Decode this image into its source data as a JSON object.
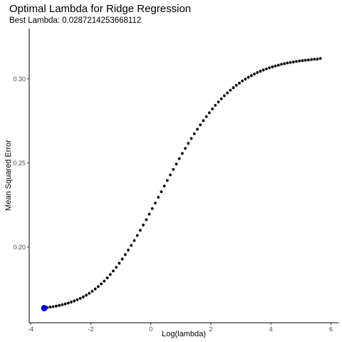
{
  "chart_data": {
    "type": "scatter",
    "title": "Optimal Lambda for Ridge Regression",
    "subtitle": "Best Lambda:  0.0287214253668112",
    "xlabel": "Log(lambda)",
    "ylabel": "Mean Squared Error",
    "xlim": [
      -4.05,
      6.25
    ],
    "ylim": [
      0.155,
      0.33
    ],
    "x_ticks": [
      -4,
      -2,
      0,
      2,
      4,
      6
    ],
    "x_tick_labels": [
      "-4",
      "-2",
      "0",
      "2",
      "4",
      "6"
    ],
    "y_ticks": [
      0.2,
      0.25,
      0.3
    ],
    "y_tick_labels": [
      "0.20",
      "0.25",
      "0.30"
    ],
    "grid": false,
    "point_color": "#000000",
    "highlight_color": "#0000cc",
    "series": [
      {
        "x": [
          -3.55,
          -3.45,
          -3.35,
          -3.25,
          -3.15,
          -3.05,
          -2.95,
          -2.85,
          -2.75,
          -2.65,
          -2.55,
          -2.45,
          -2.35,
          -2.25,
          -2.15,
          -2.05,
          -1.95,
          -1.85,
          -1.75,
          -1.65,
          -1.55,
          -1.45,
          -1.35,
          -1.25,
          -1.15,
          -1.05,
          -0.95,
          -0.85,
          -0.75,
          -0.65,
          -0.55,
          -0.45,
          -0.35,
          -0.25,
          -0.15,
          -0.05,
          0.05,
          0.15,
          0.25,
          0.35,
          0.45,
          0.55,
          0.65,
          0.75,
          0.85,
          0.95,
          1.05,
          1.15,
          1.25,
          1.35,
          1.45,
          1.55,
          1.65,
          1.75,
          1.85,
          1.95,
          2.05,
          2.15,
          2.25,
          2.35,
          2.45,
          2.55,
          2.65,
          2.75,
          2.85,
          2.95,
          3.05,
          3.15,
          3.25,
          3.35,
          3.45,
          3.55,
          3.65,
          3.75,
          3.85,
          3.95,
          4.05,
          4.15,
          4.25,
          4.35,
          4.45,
          4.55,
          4.65,
          4.75,
          4.85,
          4.95,
          5.05,
          5.15,
          5.25,
          5.35,
          5.45,
          5.55,
          5.65
        ],
        "y": [
          0.1637,
          0.164,
          0.1643,
          0.1646,
          0.1649,
          0.1653,
          0.1657,
          0.1662,
          0.1667,
          0.1673,
          0.168,
          0.1687,
          0.1695,
          0.1704,
          0.1714,
          0.1725,
          0.1737,
          0.1751,
          0.1765,
          0.1781,
          0.1798,
          0.1817,
          0.1837,
          0.1858,
          0.188,
          0.1904,
          0.1929,
          0.1955,
          0.1982,
          0.201,
          0.2039,
          0.2069,
          0.21,
          0.2131,
          0.2163,
          0.2196,
          0.2229,
          0.2262,
          0.2296,
          0.2329,
          0.2363,
          0.2396,
          0.2429,
          0.2462,
          0.2494,
          0.2526,
          0.2557,
          0.2587,
          0.2617,
          0.2646,
          0.2674,
          0.2701,
          0.2727,
          0.2752,
          0.2776,
          0.2799,
          0.2822,
          0.2843,
          0.2863,
          0.2882,
          0.29,
          0.2917,
          0.2933,
          0.2948,
          0.2962,
          0.2975,
          0.2988,
          0.2999,
          0.301,
          0.302,
          0.3029,
          0.3038,
          0.3046,
          0.3053,
          0.306,
          0.3066,
          0.3072,
          0.3077,
          0.3082,
          0.3087,
          0.3091,
          0.3095,
          0.3098,
          0.3101,
          0.3104,
          0.3107,
          0.3109,
          0.3111,
          0.3113,
          0.3115,
          0.3117,
          0.3118,
          0.3122
        ]
      }
    ],
    "highlight_point": {
      "x": -3.55,
      "y": 0.1637
    }
  }
}
